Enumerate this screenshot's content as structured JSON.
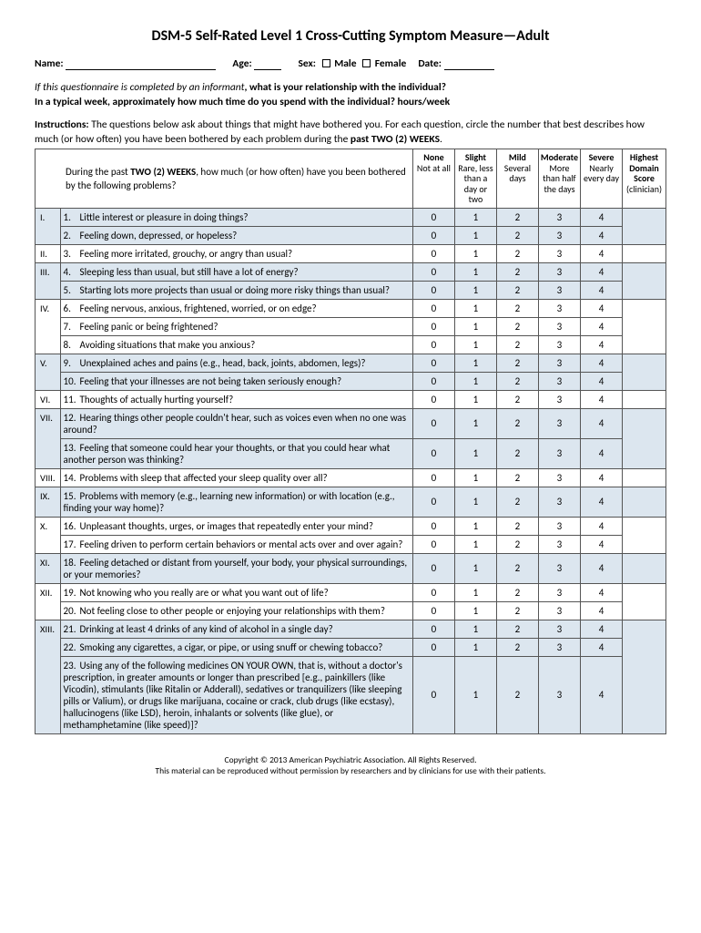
{
  "title": "DSM-5 Self-Rated Level 1 Cross-Cutting Symptom Measure—Adult",
  "fields": {
    "name_label": "Name:",
    "age_label": "Age:",
    "sex_label": "Sex:",
    "male": "Male",
    "female": "Female",
    "date_label": "Date:"
  },
  "informant": {
    "line1_italic": "If this questionnaire is completed by an informant",
    "line1_bold": ", what is your relationship with the individual?",
    "line2_bold_a": "In a typical week, approximately how much time do you spend with the individual?",
    "line2_bold_b": "hours/week"
  },
  "instructions": {
    "label": "Instructions:",
    "text_a": " The questions below ask about things that might have bothered you. For each question, circle the number that best describes how much (or how often) you have been bothered by each problem during the ",
    "text_bold": "past TWO (2) WEEKS",
    "text_c": "."
  },
  "prompt": {
    "a": "During the past ",
    "b": "TWO (2) WEEKS",
    "c": ", how much (or how often) have you been bothered by the following problems?"
  },
  "headers": {
    "none": {
      "top": "None",
      "sub": "Not at all"
    },
    "slight": {
      "top": "Slight",
      "sub": "Rare, less than a day or two"
    },
    "mild": {
      "top": "Mild",
      "sub": "Several days"
    },
    "moderate": {
      "top": "Moderate",
      "sub": "More than half the days"
    },
    "severe": {
      "top": "Severe",
      "sub": "Nearly every day"
    },
    "highest": {
      "top": "Highest Domain Score",
      "sub": "(clinician)"
    }
  },
  "ratings": [
    "0",
    "1",
    "2",
    "3",
    "4"
  ],
  "domains": [
    {
      "roman": "I.",
      "shaded": true,
      "questions": [
        {
          "n": "1.",
          "text": "Little interest or pleasure in doing things?"
        },
        {
          "n": "2.",
          "text": "Feeling down, depressed, or hopeless?"
        }
      ]
    },
    {
      "roman": "II.",
      "shaded": false,
      "questions": [
        {
          "n": "3.",
          "text": "Feeling more irritated, grouchy, or angry than usual?"
        }
      ]
    },
    {
      "roman": "III.",
      "shaded": true,
      "questions": [
        {
          "n": "4.",
          "text": "Sleeping less than usual, but still have a lot of energy?"
        },
        {
          "n": "5.",
          "text": "Starting lots more projects than usual or doing more risky things than usual?"
        }
      ]
    },
    {
      "roman": "IV.",
      "shaded": false,
      "questions": [
        {
          "n": "6.",
          "text": "Feeling nervous, anxious, frightened, worried, or on edge?"
        },
        {
          "n": "7.",
          "text": "Feeling panic or being frightened?"
        },
        {
          "n": "8.",
          "text": "Avoiding situations that make you anxious?"
        }
      ]
    },
    {
      "roman": "V.",
      "shaded": true,
      "questions": [
        {
          "n": "9.",
          "text": "Unexplained aches and pains (e.g., head, back, joints, abdomen, legs)?"
        },
        {
          "n": "10.",
          "text": "Feeling that your illnesses are not being taken seriously enough?"
        }
      ]
    },
    {
      "roman": "VI.",
      "shaded": false,
      "questions": [
        {
          "n": "11.",
          "text": "Thoughts of actually hurting yourself?"
        }
      ]
    },
    {
      "roman": "VII.",
      "shaded": true,
      "questions": [
        {
          "n": "12.",
          "text": "Hearing things other people couldn't hear, such as voices even when no one was around?"
        },
        {
          "n": "13.",
          "text": "Feeling that someone could hear your thoughts, or that you could hear what another person was thinking?"
        }
      ]
    },
    {
      "roman": "VIII.",
      "shaded": false,
      "questions": [
        {
          "n": "14.",
          "text": "Problems with sleep that affected your sleep quality over all?"
        }
      ]
    },
    {
      "roman": "IX.",
      "shaded": true,
      "questions": [
        {
          "n": "15.",
          "text": "Problems with memory (e.g., learning new information) or with location (e.g., finding your way home)?"
        }
      ]
    },
    {
      "roman": "X.",
      "shaded": false,
      "questions": [
        {
          "n": "16.",
          "text": "Unpleasant thoughts, urges, or images that repeatedly enter your mind?"
        },
        {
          "n": "17.",
          "text": "Feeling driven to perform certain behaviors or mental acts over and over again?"
        }
      ]
    },
    {
      "roman": "XI.",
      "shaded": true,
      "questions": [
        {
          "n": "18.",
          "text": "Feeling detached or distant from yourself, your body, your physical surroundings, or your memories?"
        }
      ]
    },
    {
      "roman": "XII.",
      "shaded": false,
      "questions": [
        {
          "n": "19.",
          "text": "Not knowing who you really are or what you want out of life?"
        },
        {
          "n": "20.",
          "text": "Not feeling close to other people or enjoying your relationships with them?"
        }
      ]
    },
    {
      "roman": "XIII.",
      "shaded": true,
      "questions": [
        {
          "n": "21.",
          "text": "Drinking at least 4 drinks of any kind of alcohol in a single day?"
        },
        {
          "n": "22.",
          "text": "Smoking any cigarettes, a cigar, or pipe, or using snuff or chewing tobacco?"
        },
        {
          "n": "23.",
          "text": "Using any of the following medicines ON YOUR OWN, that is, without a doctor's prescription, in greater amounts or longer than prescribed [e.g., painkillers (like Vicodin), stimulants (like Ritalin or Adderall), sedatives or tranquilizers (like sleeping pills or Valium), or drugs like marijuana, cocaine or crack, club drugs (like ecstasy), hallucinogens (like LSD), heroin, inhalants or solvents (like glue), or methamphetamine (like speed)]?"
        }
      ]
    }
  ],
  "footer": {
    "line1": "Copyright © 2013 American Psychiatric Association. All Rights Reserved.",
    "line2": "This material can be reproduced without permission by researchers and by clinicians for use with their patients."
  },
  "colors": {
    "shaded_bg": "#dce6ef",
    "border": "#555555"
  }
}
